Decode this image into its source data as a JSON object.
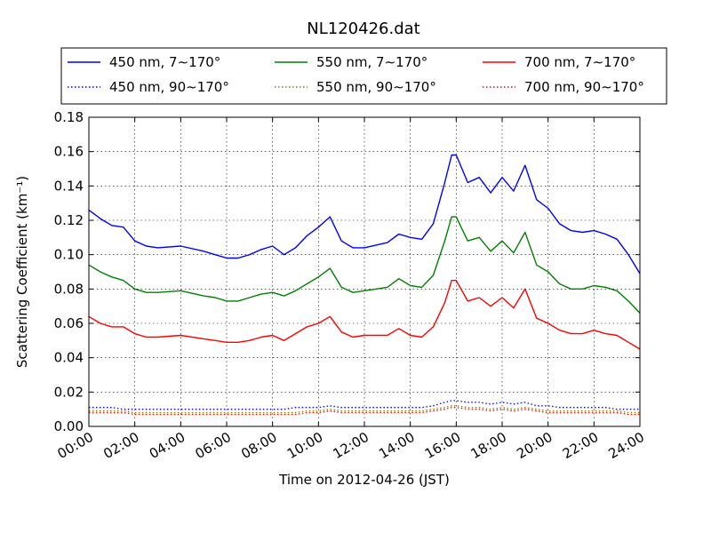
{
  "chart_data": {
    "type": "line",
    "title": "NL120426.dat",
    "xlabel": "Time on 2012-04-26 (JST)",
    "ylabel": "Scattering Coefficient (km⁻¹)",
    "xlim": [
      0,
      24
    ],
    "ylim": [
      0,
      0.18
    ],
    "x_ticks": [
      "00:00",
      "02:00",
      "04:00",
      "06:00",
      "08:00",
      "10:00",
      "12:00",
      "14:00",
      "16:00",
      "18:00",
      "20:00",
      "22:00",
      "24:00"
    ],
    "y_ticks": [
      "0.00",
      "0.02",
      "0.04",
      "0.06",
      "0.08",
      "0.10",
      "0.12",
      "0.14",
      "0.16",
      "0.18"
    ],
    "grid": true,
    "legend_position": "top",
    "x_hours": [
      0,
      0.5,
      1,
      1.5,
      2,
      2.5,
      3,
      4,
      5,
      5.5,
      6,
      6.5,
      7,
      7.5,
      8,
      8.5,
      9,
      9.5,
      10,
      10.5,
      11,
      11.5,
      12,
      13,
      13.5,
      14,
      14.5,
      15,
      15.5,
      15.8,
      16,
      16.5,
      17,
      17.5,
      18,
      18.5,
      19,
      19.5,
      20,
      20.5,
      21,
      21.5,
      22,
      22.5,
      23,
      23.5,
      24
    ],
    "series": [
      {
        "name": "450 nm, 7∼170°",
        "color": "#0000ff",
        "style": "solid",
        "values": [
          0.126,
          0.121,
          0.117,
          0.116,
          0.108,
          0.105,
          0.104,
          0.105,
          0.102,
          0.1,
          0.098,
          0.098,
          0.1,
          0.103,
          0.105,
          0.1,
          0.104,
          0.111,
          0.116,
          0.122,
          0.108,
          0.104,
          0.104,
          0.107,
          0.112,
          0.11,
          0.109,
          0.118,
          0.142,
          0.158,
          0.158,
          0.142,
          0.145,
          0.136,
          0.145,
          0.137,
          0.152,
          0.132,
          0.127,
          0.118,
          0.114,
          0.113,
          0.114,
          0.112,
          0.109,
          0.1,
          0.089
        ]
      },
      {
        "name": "550 nm, 7∼170°",
        "color": "#008000",
        "style": "solid",
        "values": [
          0.094,
          0.09,
          0.087,
          0.085,
          0.08,
          0.078,
          0.078,
          0.079,
          0.076,
          0.075,
          0.073,
          0.073,
          0.075,
          0.077,
          0.078,
          0.076,
          0.079,
          0.083,
          0.087,
          0.092,
          0.081,
          0.078,
          0.079,
          0.081,
          0.086,
          0.082,
          0.081,
          0.088,
          0.108,
          0.122,
          0.122,
          0.108,
          0.11,
          0.102,
          0.108,
          0.101,
          0.113,
          0.094,
          0.09,
          0.083,
          0.08,
          0.08,
          0.082,
          0.081,
          0.079,
          0.073,
          0.066
        ]
      },
      {
        "name": "700 nm, 7∼170°",
        "color": "#ff0000",
        "style": "solid",
        "values": [
          0.064,
          0.06,
          0.058,
          0.058,
          0.054,
          0.052,
          0.052,
          0.053,
          0.051,
          0.05,
          0.049,
          0.049,
          0.05,
          0.052,
          0.053,
          0.05,
          0.054,
          0.058,
          0.06,
          0.064,
          0.055,
          0.052,
          0.053,
          0.053,
          0.057,
          0.053,
          0.052,
          0.058,
          0.072,
          0.085,
          0.085,
          0.073,
          0.075,
          0.07,
          0.075,
          0.069,
          0.08,
          0.063,
          0.06,
          0.056,
          0.054,
          0.054,
          0.056,
          0.054,
          0.053,
          0.049,
          0.045
        ]
      },
      {
        "name": "450 nm, 90∼170°",
        "color": "#0000ff",
        "style": "dotted",
        "values": [
          0.011,
          0.011,
          0.011,
          0.01,
          0.01,
          0.01,
          0.01,
          0.01,
          0.01,
          0.01,
          0.01,
          0.01,
          0.01,
          0.01,
          0.01,
          0.01,
          0.011,
          0.011,
          0.011,
          0.012,
          0.011,
          0.011,
          0.011,
          0.011,
          0.011,
          0.011,
          0.011,
          0.012,
          0.014,
          0.015,
          0.015,
          0.014,
          0.014,
          0.013,
          0.014,
          0.013,
          0.014,
          0.012,
          0.012,
          0.011,
          0.011,
          0.011,
          0.011,
          0.011,
          0.01,
          0.01,
          0.01
        ]
      },
      {
        "name": "550 nm, 90∼170°",
        "color": "#808000",
        "style": "dotted",
        "values": [
          0.009,
          0.009,
          0.009,
          0.009,
          0.008,
          0.008,
          0.008,
          0.008,
          0.008,
          0.008,
          0.008,
          0.008,
          0.008,
          0.008,
          0.008,
          0.008,
          0.008,
          0.009,
          0.009,
          0.01,
          0.009,
          0.009,
          0.009,
          0.009,
          0.009,
          0.009,
          0.009,
          0.01,
          0.011,
          0.012,
          0.012,
          0.011,
          0.011,
          0.01,
          0.011,
          0.01,
          0.011,
          0.01,
          0.009,
          0.009,
          0.009,
          0.009,
          0.009,
          0.009,
          0.009,
          0.008,
          0.008
        ]
      },
      {
        "name": "700 nm, 90∼170°",
        "color": "#ff0000",
        "style": "dotted",
        "values": [
          0.008,
          0.008,
          0.008,
          0.008,
          0.007,
          0.007,
          0.007,
          0.007,
          0.007,
          0.007,
          0.007,
          0.007,
          0.007,
          0.007,
          0.007,
          0.007,
          0.007,
          0.008,
          0.008,
          0.009,
          0.008,
          0.008,
          0.008,
          0.008,
          0.008,
          0.008,
          0.008,
          0.009,
          0.01,
          0.011,
          0.011,
          0.01,
          0.01,
          0.009,
          0.01,
          0.009,
          0.01,
          0.009,
          0.008,
          0.008,
          0.008,
          0.008,
          0.008,
          0.008,
          0.008,
          0.007,
          0.007
        ]
      }
    ]
  }
}
